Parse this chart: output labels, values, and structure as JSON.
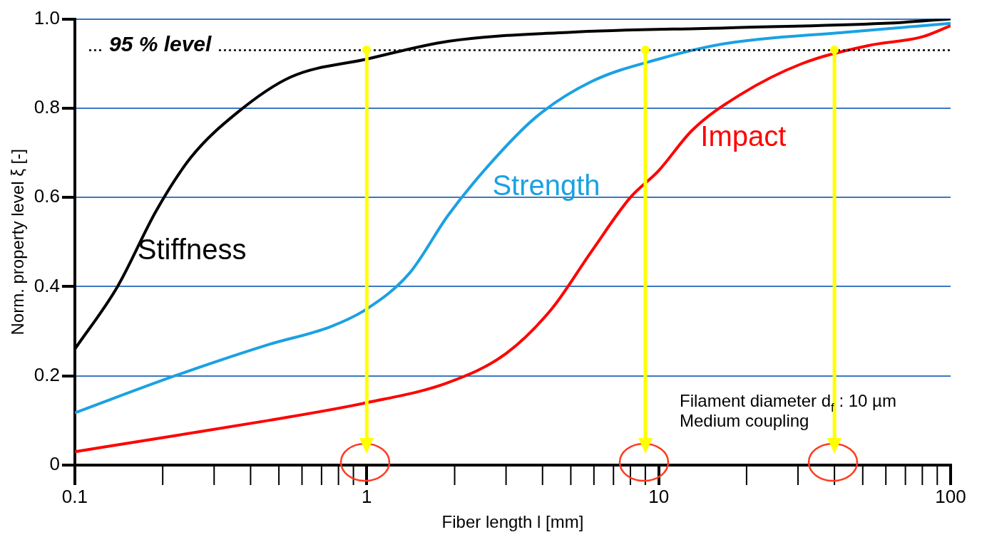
{
  "chart_data": {
    "type": "line",
    "xlabel": "Fiber length l [mm]",
    "ylabel": "Norm. property level ξ [-]",
    "log": "x",
    "xlim": [
      0.1,
      100
    ],
    "ylim": [
      0,
      1.0
    ],
    "xticks": [
      0.1,
      1,
      10,
      100
    ],
    "yticks": [
      0,
      0.2,
      0.4,
      0.6,
      0.8,
      {
        "value": 1.0,
        "label": "1.0"
      }
    ],
    "grid": "y",
    "marker": "none",
    "line_style": "solid",
    "series": [
      {
        "name": "Stiffness",
        "color": "#000000",
        "x": [
          0.1,
          0.14,
          0.19,
          0.25,
          0.36,
          0.55,
          1,
          1.9,
          4.9,
          17,
          59,
          100
        ],
        "values": [
          0.26,
          0.4,
          0.57,
          0.69,
          0.79,
          0.87,
          0.91,
          0.95,
          0.97,
          0.98,
          0.99,
          1.0
        ]
      },
      {
        "name": "Strength",
        "color": "#1ba1e2",
        "x": [
          0.1,
          0.22,
          0.46,
          0.75,
          1,
          1.4,
          1.9,
          2.6,
          3.8,
          5.9,
          10,
          17,
          43,
          100
        ],
        "values": [
          0.117,
          0.2,
          0.27,
          0.31,
          0.35,
          0.43,
          0.56,
          0.67,
          0.78,
          0.86,
          0.91,
          0.945,
          0.97,
          0.99
        ]
      },
      {
        "name": "Impact",
        "color": "#ff0000",
        "x": [
          0.1,
          0.22,
          0.46,
          1,
          1.9,
          3,
          4.3,
          5.9,
          8,
          10,
          13,
          19,
          31,
          52,
          80,
          100
        ],
        "values": [
          0.03,
          0.066,
          0.1,
          0.14,
          0.185,
          0.25,
          0.35,
          0.48,
          0.6,
          0.66,
          0.75,
          0.83,
          0.9,
          0.94,
          0.96,
          0.985
        ]
      }
    ],
    "ref_lines": [
      {
        "axis": "y",
        "value": 0.93,
        "label": "95 % level",
        "color": "#000000",
        "line_style": "dotted"
      },
      {
        "axis": "x",
        "value": 1,
        "label": null,
        "color": "#ffff00"
      },
      {
        "axis": "x",
        "value": 9,
        "label": null,
        "color": "#ffff00"
      },
      {
        "axis": "x",
        "value": 40,
        "label": null,
        "color": "#ffff00"
      }
    ],
    "annotations": [
      "Filament diameter d$_{f}$ : 10 µm",
      "Medium coupling"
    ]
  }
}
